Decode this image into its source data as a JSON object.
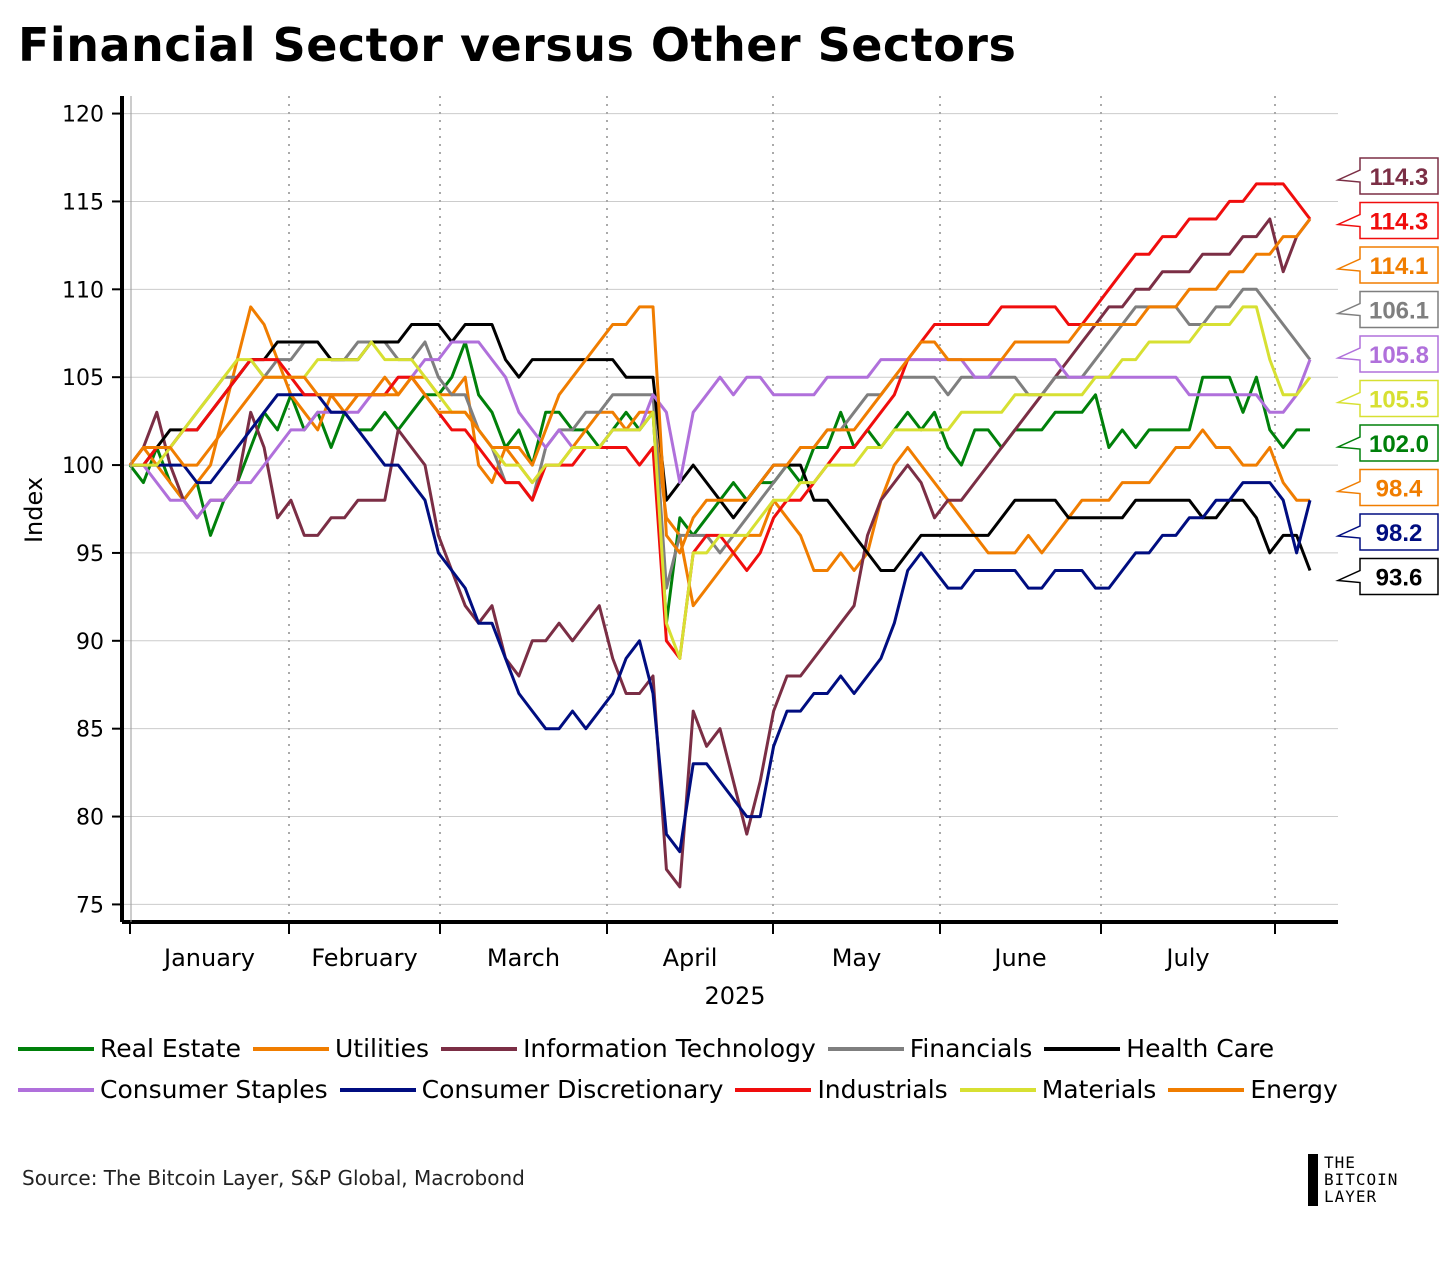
{
  "title": "Financial Sector versus Other Sectors",
  "source": "Source: The Bitcoin Layer, S&P Global, Macrobond",
  "logo": {
    "line1": "THE",
    "line2": "BITCOIN",
    "line3": "LAYER"
  },
  "chart_data": {
    "type": "line",
    "title": "Financial Sector versus Other Sectors",
    "xlabel": "2025",
    "ylabel": "Index",
    "ylim": [
      74,
      121
    ],
    "yticks": [
      75,
      80,
      85,
      90,
      95,
      100,
      105,
      110,
      115,
      120
    ],
    "months": [
      "January",
      "February",
      "March",
      "April",
      "May",
      "June",
      "July"
    ],
    "series": [
      {
        "name": "Real Estate",
        "color": "#00800a",
        "end_label": "102.0",
        "values": [
          100,
          99,
          101,
          99,
          98,
          99,
          96,
          98,
          99,
          101,
          103,
          102,
          104,
          102,
          103,
          101,
          103,
          102,
          102,
          103,
          102,
          103,
          104,
          104,
          105,
          107,
          104,
          103,
          101,
          102,
          100,
          103,
          103,
          102,
          102,
          101,
          102,
          103,
          102,
          103,
          91,
          97,
          96,
          97,
          98,
          99,
          98,
          99,
          99,
          100,
          99,
          101,
          101,
          103,
          101,
          102,
          101,
          102,
          103,
          102,
          103,
          101,
          100,
          102,
          102,
          101,
          102,
          102,
          102,
          103,
          103,
          103,
          104,
          101,
          102,
          101,
          102,
          102,
          102,
          102,
          105,
          105,
          105,
          103,
          105,
          102,
          101,
          102,
          102
        ]
      },
      {
        "name": "Utilities",
        "color": "#f07d00",
        "end_label": "98.4",
        "values": [
          100,
          101,
          100,
          99,
          98,
          99,
          100,
          103,
          106,
          109,
          108,
          106,
          104,
          103,
          102,
          104,
          103,
          104,
          104,
          105,
          104,
          105,
          105,
          104,
          104,
          105,
          100,
          99,
          101,
          100,
          99,
          100,
          100,
          101,
          102,
          103,
          103,
          102,
          103,
          103,
          97,
          96,
          92,
          93,
          94,
          95,
          96,
          96,
          98,
          97,
          96,
          94,
          94,
          95,
          94,
          95,
          98,
          100,
          101,
          100,
          99,
          98,
          97,
          96,
          95,
          95,
          95,
          96,
          95,
          96,
          97,
          98,
          98,
          98,
          99,
          99,
          99,
          100,
          101,
          101,
          102,
          101,
          101,
          100,
          100,
          101,
          99,
          98,
          98
        ]
      },
      {
        "name": "Information Technology",
        "color": "#7b2e45",
        "end_label": "114.3",
        "values": [
          100,
          101,
          103,
          100,
          98,
          97,
          98,
          98,
          99,
          103,
          101,
          97,
          98,
          96,
          96,
          97,
          97,
          98,
          98,
          98,
          102,
          101,
          100,
          96,
          94,
          92,
          91,
          92,
          89,
          88,
          90,
          90,
          91,
          90,
          91,
          92,
          89,
          87,
          87,
          88,
          77,
          76,
          86,
          84,
          85,
          82,
          79,
          82,
          86,
          88,
          88,
          89,
          90,
          91,
          92,
          96,
          98,
          99,
          100,
          99,
          97,
          98,
          98,
          99,
          100,
          101,
          102,
          103,
          104,
          105,
          106,
          107,
          108,
          109,
          109,
          110,
          110,
          111,
          111,
          111,
          112,
          112,
          112,
          113,
          113,
          114,
          111,
          113,
          114
        ]
      },
      {
        "name": "Financials",
        "color": "#7f7f7f",
        "end_label": "106.1",
        "values": [
          100,
          100,
          101,
          101,
          102,
          103,
          104,
          105,
          105,
          106,
          105,
          106,
          106,
          107,
          107,
          106,
          106,
          107,
          107,
          107,
          106,
          106,
          107,
          105,
          104,
          104,
          102,
          101,
          99,
          99,
          98,
          101,
          102,
          102,
          103,
          103,
          104,
          104,
          104,
          104,
          93,
          96,
          96,
          96,
          95,
          96,
          97,
          98,
          99,
          100,
          101,
          101,
          102,
          102,
          103,
          104,
          104,
          105,
          105,
          105,
          105,
          104,
          105,
          105,
          105,
          105,
          105,
          104,
          104,
          105,
          105,
          105,
          106,
          107,
          108,
          109,
          109,
          109,
          109,
          108,
          108,
          109,
          109,
          110,
          110,
          109,
          108,
          107,
          106
        ]
      },
      {
        "name": "Health Care",
        "color": "#000000",
        "end_label": "93.6",
        "values": [
          100,
          100,
          101,
          102,
          102,
          102,
          103,
          104,
          105,
          106,
          106,
          107,
          107,
          107,
          107,
          106,
          106,
          106,
          107,
          107,
          107,
          108,
          108,
          108,
          107,
          108,
          108,
          108,
          106,
          105,
          106,
          106,
          106,
          106,
          106,
          106,
          106,
          105,
          105,
          105,
          98,
          99,
          100,
          99,
          98,
          97,
          98,
          99,
          100,
          100,
          100,
          98,
          98,
          97,
          96,
          95,
          94,
          94,
          95,
          96,
          96,
          96,
          96,
          96,
          96,
          97,
          98,
          98,
          98,
          98,
          97,
          97,
          97,
          97,
          97,
          98,
          98,
          98,
          98,
          98,
          97,
          97,
          98,
          98,
          97,
          95,
          96,
          96,
          94
        ]
      },
      {
        "name": "Consumer Staples",
        "color": "#b070db",
        "end_label": "105.8",
        "values": [
          100,
          100,
          99,
          98,
          98,
          97,
          98,
          98,
          99,
          99,
          100,
          101,
          102,
          102,
          103,
          103,
          103,
          103,
          104,
          104,
          105,
          105,
          106,
          106,
          107,
          107,
          107,
          106,
          105,
          103,
          102,
          101,
          102,
          101,
          101,
          101,
          102,
          102,
          102,
          104,
          103,
          99,
          103,
          104,
          105,
          104,
          105,
          105,
          104,
          104,
          104,
          104,
          105,
          105,
          105,
          105,
          106,
          106,
          106,
          106,
          106,
          106,
          106,
          105,
          105,
          106,
          106,
          106,
          106,
          106,
          105,
          105,
          105,
          105,
          105,
          105,
          105,
          105,
          105,
          104,
          104,
          104,
          104,
          104,
          104,
          103,
          103,
          104,
          106
        ]
      },
      {
        "name": "Consumer Discretionary",
        "color": "#000d80",
        "end_label": "98.2",
        "values": [
          100,
          100,
          100,
          100,
          100,
          99,
          99,
          100,
          101,
          102,
          103,
          104,
          104,
          104,
          104,
          103,
          103,
          102,
          101,
          100,
          100,
          99,
          98,
          95,
          94,
          93,
          91,
          91,
          89,
          87,
          86,
          85,
          85,
          86,
          85,
          86,
          87,
          89,
          90,
          87,
          79,
          78,
          83,
          83,
          82,
          81,
          80,
          80,
          84,
          86,
          86,
          87,
          87,
          88,
          87,
          88,
          89,
          91,
          94,
          95,
          94,
          93,
          93,
          94,
          94,
          94,
          94,
          93,
          93,
          94,
          94,
          94,
          93,
          93,
          94,
          95,
          95,
          96,
          96,
          97,
          97,
          98,
          98,
          99,
          99,
          99,
          98,
          95,
          98
        ]
      },
      {
        "name": "Industrials",
        "color": "#f00d0d",
        "end_label": "114.3",
        "values": [
          100,
          100,
          101,
          101,
          102,
          102,
          103,
          104,
          105,
          106,
          106,
          106,
          105,
          104,
          104,
          104,
          104,
          104,
          104,
          104,
          105,
          105,
          104,
          103,
          102,
          102,
          101,
          100,
          99,
          99,
          98,
          100,
          100,
          100,
          101,
          101,
          101,
          101,
          100,
          101,
          90,
          89,
          95,
          96,
          96,
          95,
          94,
          95,
          97,
          98,
          98,
          99,
          100,
          101,
          101,
          102,
          103,
          104,
          106,
          107,
          108,
          108,
          108,
          108,
          108,
          109,
          109,
          109,
          109,
          109,
          108,
          108,
          109,
          110,
          111,
          112,
          112,
          113,
          113,
          114,
          114,
          114,
          115,
          115,
          116,
          116,
          116,
          115,
          114
        ]
      },
      {
        "name": "Materials",
        "color": "#d7e032",
        "end_label": "105.5",
        "values": [
          100,
          100,
          100,
          101,
          102,
          103,
          104,
          105,
          106,
          106,
          105,
          105,
          105,
          105,
          106,
          106,
          106,
          106,
          107,
          106,
          106,
          106,
          105,
          104,
          103,
          103,
          102,
          101,
          100,
          100,
          99,
          100,
          100,
          101,
          101,
          101,
          102,
          102,
          102,
          103,
          91,
          89,
          95,
          95,
          96,
          96,
          96,
          97,
          98,
          98,
          99,
          99,
          100,
          100,
          100,
          101,
          101,
          102,
          102,
          102,
          102,
          102,
          103,
          103,
          103,
          103,
          104,
          104,
          104,
          104,
          104,
          104,
          105,
          105,
          106,
          106,
          107,
          107,
          107,
          107,
          108,
          108,
          108,
          109,
          109,
          106,
          104,
          104,
          105
        ]
      },
      {
        "name": "Energy",
        "color": "#f07d00",
        "end_label": "114.1",
        "values": [
          100,
          101,
          101,
          101,
          100,
          100,
          101,
          102,
          103,
          104,
          105,
          105,
          105,
          105,
          104,
          104,
          104,
          104,
          104,
          104,
          104,
          105,
          104,
          103,
          103,
          103,
          102,
          101,
          101,
          101,
          100,
          102,
          104,
          105,
          106,
          107,
          108,
          108,
          109,
          109,
          96,
          95,
          97,
          98,
          98,
          98,
          98,
          99,
          100,
          100,
          101,
          101,
          102,
          102,
          102,
          103,
          104,
          105,
          106,
          107,
          107,
          106,
          106,
          106,
          106,
          106,
          107,
          107,
          107,
          107,
          107,
          108,
          108,
          108,
          108,
          108,
          109,
          109,
          109,
          110,
          110,
          110,
          111,
          111,
          112,
          112,
          113,
          113,
          114
        ]
      }
    ]
  }
}
